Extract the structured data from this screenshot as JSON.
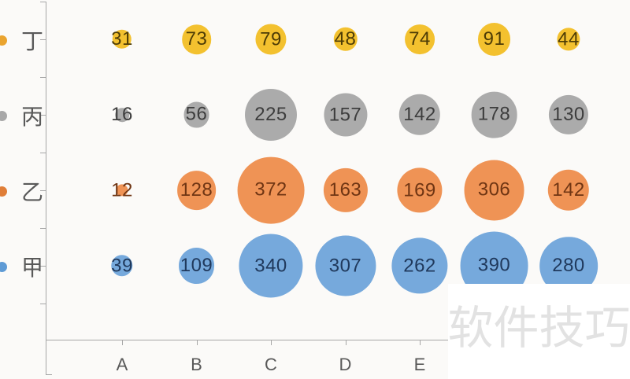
{
  "chart_data": {
    "type": "bubble",
    "title": "",
    "x_tick_labels": [
      "A",
      "B",
      "C",
      "D",
      "E"
    ],
    "x_axis_note": "columns 6 and 7 have bubbles but their axis labels are hidden by the watermark",
    "legend_position": "none (row labels with colored dots on y-axis)",
    "grid": "off",
    "rows": [
      {
        "label": "丁",
        "dot_color": "#eaa42f",
        "bubble_color": "#f3c12f",
        "value_color": "#4d3c06",
        "values": [
          31,
          73,
          79,
          48,
          74,
          91,
          44
        ]
      },
      {
        "label": "丙",
        "dot_color": "#a8a8a8",
        "bubble_color": "#ababab",
        "value_color": "#3d3d3d",
        "values": [
          16,
          56,
          225,
          157,
          142,
          178,
          130
        ]
      },
      {
        "label": "乙",
        "dot_color": "#e07e38",
        "bubble_color": "#ef9355",
        "value_color": "#6f3513",
        "values": [
          12,
          128,
          372,
          163,
          169,
          306,
          142
        ]
      },
      {
        "label": "甲",
        "dot_color": "#5f9bd5",
        "bubble_color": "#76a9dc",
        "value_color": "#20395c",
        "values": [
          39,
          109,
          340,
          307,
          262,
          390,
          280
        ]
      }
    ]
  },
  "watermark": {
    "text": "软件技巧",
    "color": "#e2e2e2"
  }
}
